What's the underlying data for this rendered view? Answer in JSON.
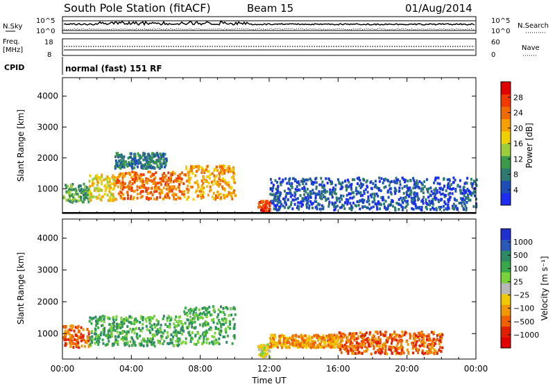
{
  "header": {
    "station": "South Pole Station (fitACF)",
    "beam": "Beam 15",
    "date": "01/Aug/2014"
  },
  "noise_panel": {
    "left_label": "N.Sky",
    "right_label": "N.Search",
    "top_tick": "10^5",
    "bottom_tick": "10^0"
  },
  "freq_panel": {
    "left_label_1": "Freq.",
    "left_label_2": "[MHz]",
    "right_label": "Nave",
    "left_ticks": [
      "18",
      "8"
    ],
    "right_ticks": [
      "60",
      "0"
    ]
  },
  "cpid": {
    "label": "CPID",
    "text": "normal (fast) 151 RF"
  },
  "colors": {
    "power": [
      "#1c2cf0",
      "#1e4fb8",
      "#2f7a70",
      "#3c9a4a",
      "#9ccd3c",
      "#f0d000",
      "#f6a000",
      "#f06a00",
      "#f03a00",
      "#e00000"
    ],
    "velocity": [
      "#2030d0",
      "#2a58b8",
      "#2e8a66",
      "#39a84a",
      "#7ad23a",
      "#b8b8b8",
      "#f0c800",
      "#f09800",
      "#f06000",
      "#e02000",
      "#e00000"
    ]
  },
  "chart_data": [
    {
      "type": "heatmap",
      "name": "power",
      "ylabel": "Slant Range [km]",
      "yticks": [
        "1000",
        "2000",
        "3000",
        "4000"
      ],
      "ylim": [
        200,
        4600
      ],
      "xlim_hours": [
        0,
        24
      ],
      "colorbar": {
        "label": "Power [dB]",
        "ticks": [
          "4",
          "8",
          "12",
          "16",
          "20",
          "24",
          "28"
        ],
        "range": [
          0,
          32
        ]
      },
      "regions": [
        {
          "t0": 0.0,
          "t1": 1.5,
          "r0": 600,
          "r1": 1200,
          "level": 3
        },
        {
          "t0": 1.5,
          "t1": 3.0,
          "r0": 650,
          "r1": 1500,
          "level": 5
        },
        {
          "t0": 3.0,
          "t1": 7.0,
          "r0": 700,
          "r1": 1600,
          "level": 7
        },
        {
          "t0": 3.0,
          "t1": 6.0,
          "r0": 1700,
          "r1": 2200,
          "level": 2
        },
        {
          "t0": 7.0,
          "t1": 10.0,
          "r0": 700,
          "r1": 1800,
          "level": 6
        },
        {
          "t0": 11.3,
          "t1": 12.0,
          "r0": 300,
          "r1": 650,
          "level": 8
        },
        {
          "t0": 12.0,
          "t1": 24.0,
          "r0": 350,
          "r1": 1400,
          "level": 1
        }
      ]
    },
    {
      "type": "heatmap",
      "name": "velocity",
      "ylabel": "Slant Range [km]",
      "yticks": [
        "1000",
        "2000",
        "3000",
        "4000"
      ],
      "ylim": [
        200,
        4600
      ],
      "xlim_hours": [
        0,
        24
      ],
      "xticks": [
        "00:00",
        "04:00",
        "08:00",
        "12:00",
        "16:00",
        "20:00",
        "00:00"
      ],
      "xlabel": "Time UT",
      "colorbar": {
        "label": "Velocity [m s⁻¹]",
        "ticks": [
          "1000",
          "500",
          "100",
          "25",
          "−25",
          "−100",
          "−500",
          "−1000"
        ]
      },
      "regions": [
        {
          "t0": 0.0,
          "t1": 1.5,
          "r0": 600,
          "r1": 1300,
          "level": 8
        },
        {
          "t0": 1.5,
          "t1": 7.0,
          "r0": 650,
          "r1": 1600,
          "level": 3
        },
        {
          "t0": 7.0,
          "t1": 10.0,
          "r0": 700,
          "r1": 1900,
          "level": 3
        },
        {
          "t0": 11.3,
          "t1": 12.0,
          "r0": 300,
          "r1": 700,
          "level": 5
        },
        {
          "t0": 12.0,
          "t1": 16.0,
          "r0": 600,
          "r1": 1000,
          "level": 7
        },
        {
          "t0": 16.0,
          "t1": 22.0,
          "r0": 400,
          "r1": 1100,
          "level": 8
        }
      ]
    }
  ]
}
